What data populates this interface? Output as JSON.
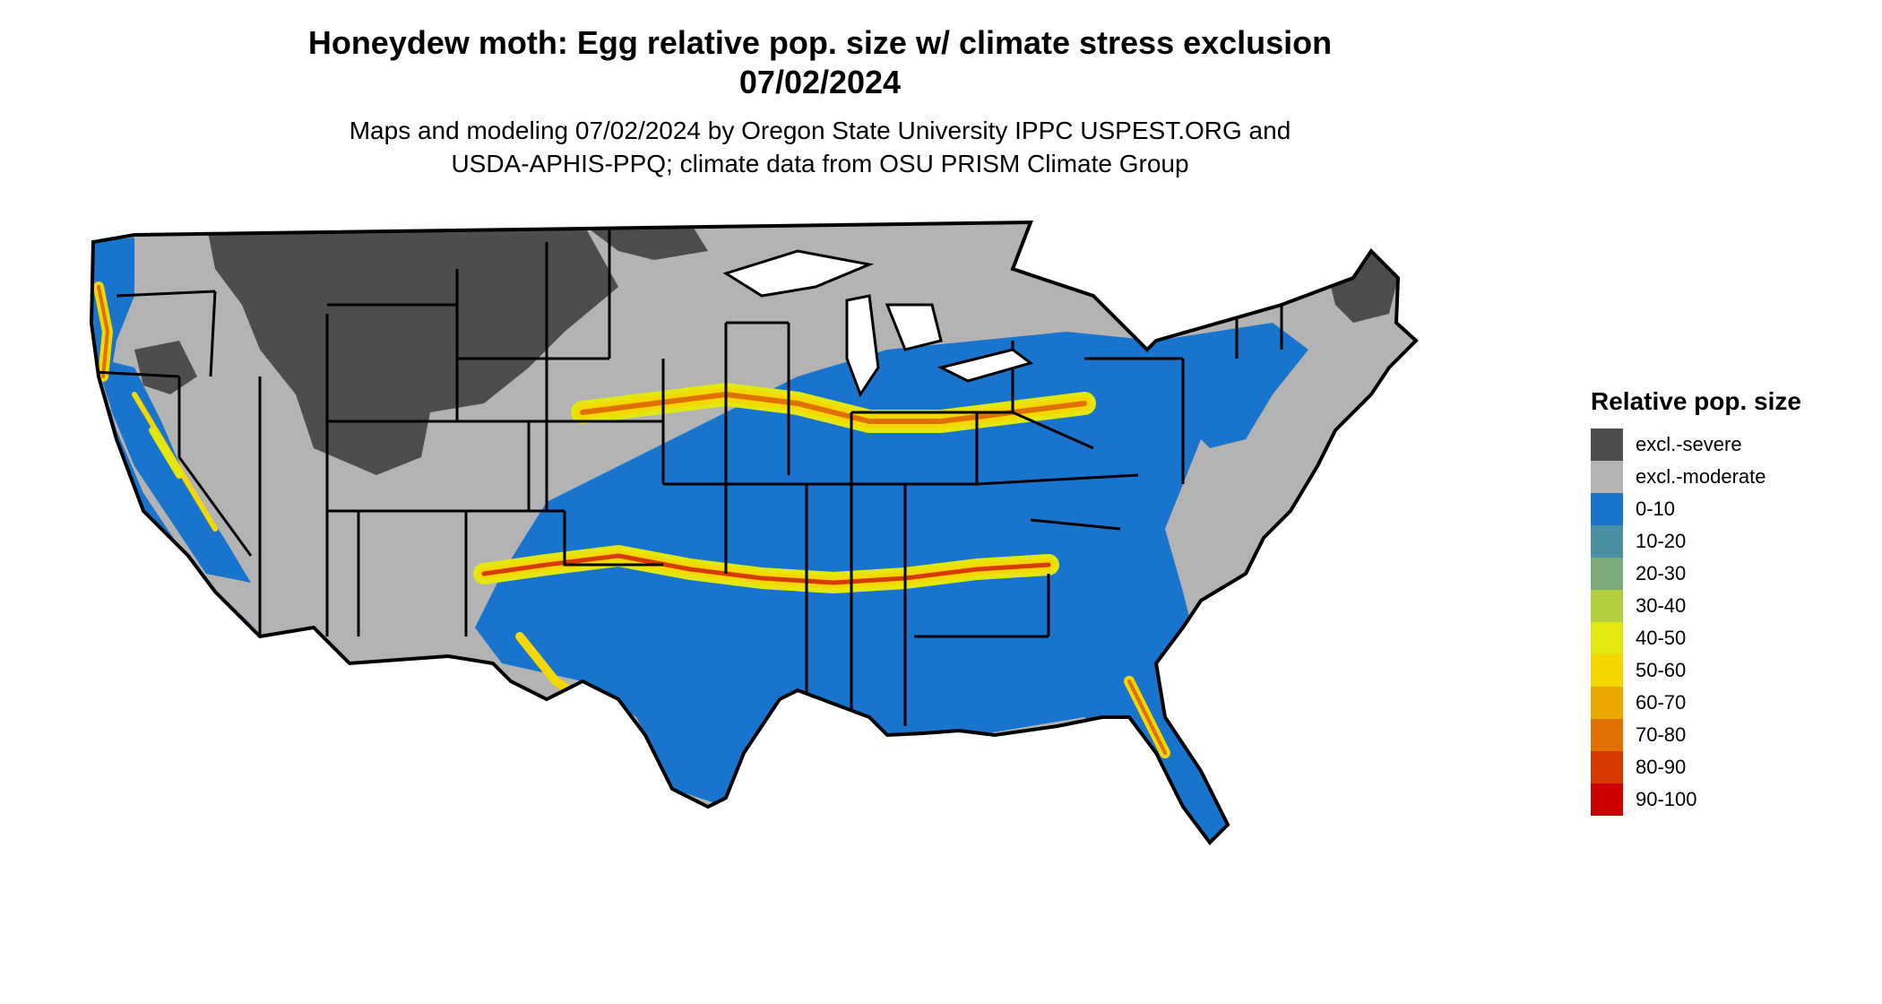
{
  "title_line1": "Honeydew moth: Egg relative pop. size w/ climate stress exclusion",
  "title_line2": "07/02/2024",
  "subtitle_line1": "Maps and modeling 07/02/2024 by Oregon State University IPPC USPEST.ORG and",
  "subtitle_line2": "USDA-APHIS-PPQ; climate data from OSU PRISM Climate Group",
  "legend": {
    "title": "Relative pop. size",
    "items": [
      {
        "label": "excl.-severe",
        "color": "#4d4d4d"
      },
      {
        "label": "excl.-moderate",
        "color": "#b3b3b3"
      },
      {
        "label": "0-10",
        "color": "#1874cd"
      },
      {
        "label": "10-20",
        "color": "#4a90a4"
      },
      {
        "label": "20-30",
        "color": "#7bab79"
      },
      {
        "label": "30-40",
        "color": "#b3cf3f"
      },
      {
        "label": "40-50",
        "color": "#e2e80e"
      },
      {
        "label": "50-60",
        "color": "#f5d800"
      },
      {
        "label": "60-70",
        "color": "#eba800"
      },
      {
        "label": "70-80",
        "color": "#e07000"
      },
      {
        "label": "80-90",
        "color": "#d63a00"
      },
      {
        "label": "90-100",
        "color": "#cd0000"
      }
    ]
  }
}
